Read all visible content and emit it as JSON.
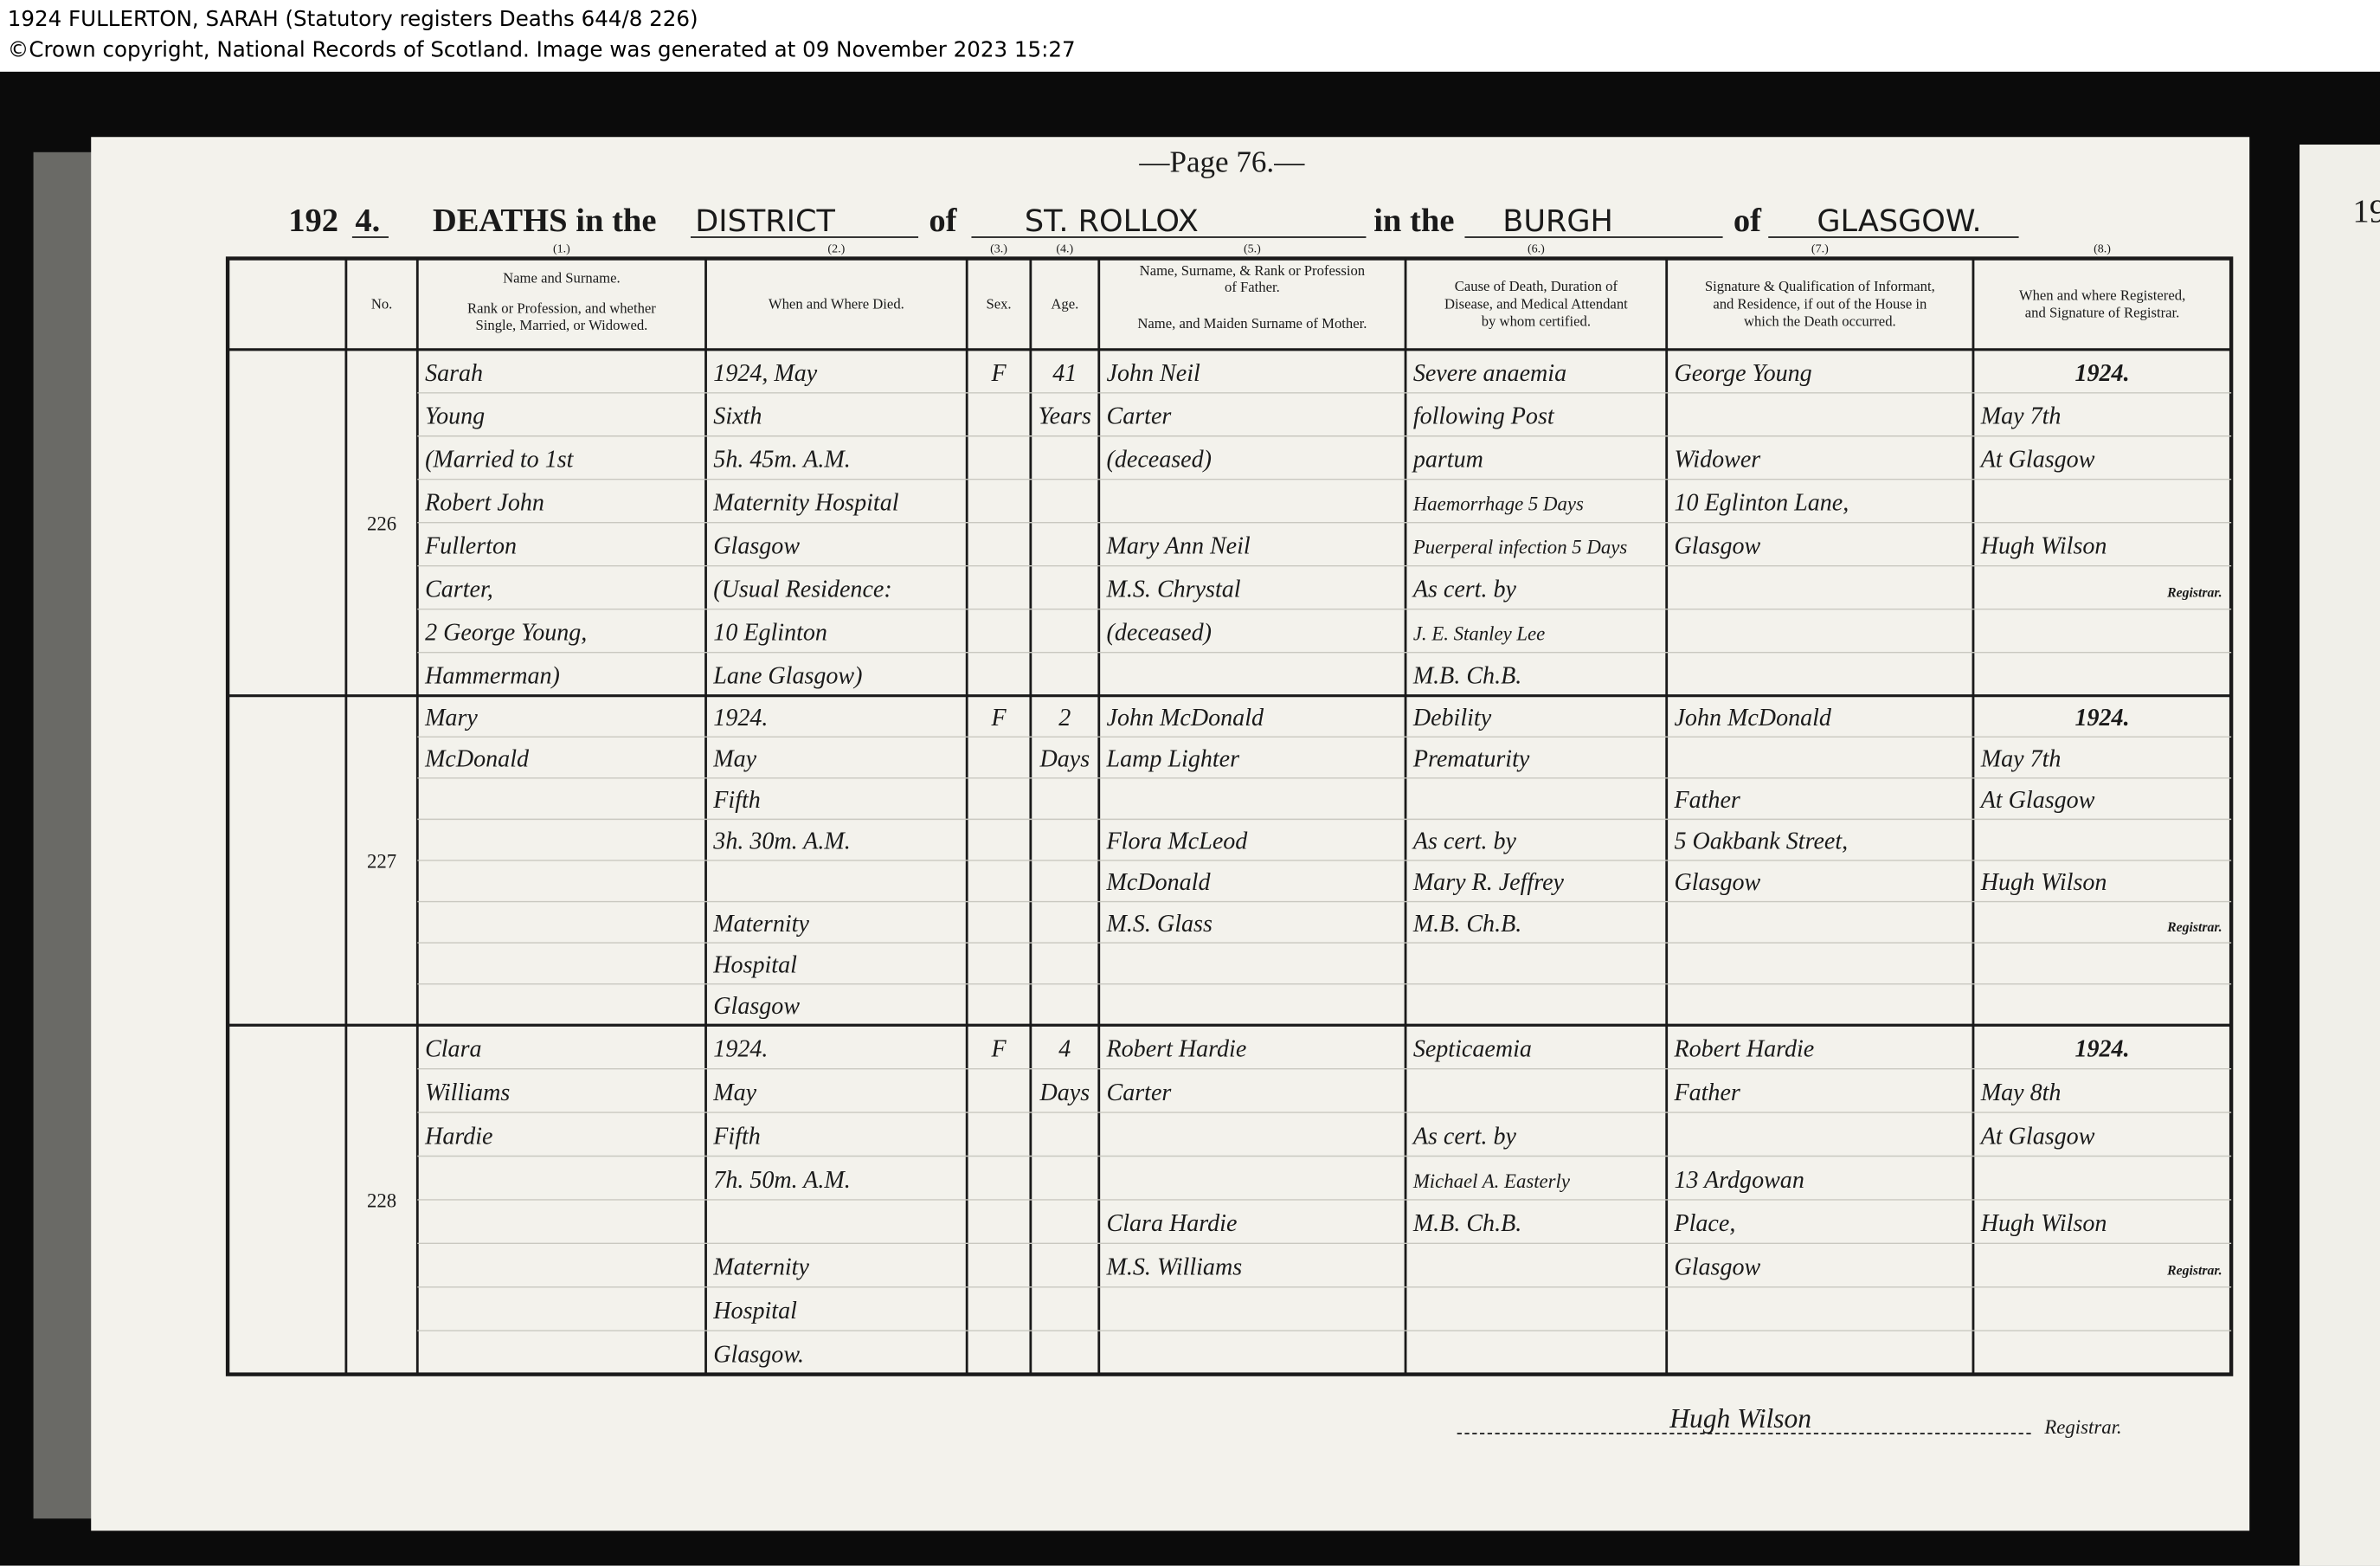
{
  "header": {
    "line1": "1924 FULLERTON, SARAH (Statutory registers Deaths 644/8 226)",
    "line2": "©Crown copyright, National Records of Scotland. Image was generated at 09 November 2023 15:27"
  },
  "page": {
    "page_number": "—Page 76.—",
    "next_page_year": "19",
    "heading": {
      "year": "192",
      "year_digit": "4.",
      "deaths": "DEATHS in the",
      "district_label": "DISTRICT",
      "of1": "of",
      "district": "ST. ROLLOX",
      "in_the": "in the",
      "burgh_label": "BURGH",
      "of2": "of",
      "burgh": "GLASGOW."
    }
  },
  "register": {
    "column_numbers": [
      "(1.)",
      "(2.)",
      "(3.)",
      "(4.)",
      "(5.)",
      "(6.)",
      "(7.)",
      "(8.)"
    ],
    "column_headers": {
      "no": [
        "No."
      ],
      "name": [
        "Name and Surname.",
        "Rank or Profession, and whether",
        "Single, Married, or Widowed."
      ],
      "when": [
        "When and Where Died."
      ],
      "sex": [
        "Sex."
      ],
      "age": [
        "Age."
      ],
      "father": [
        "Name, Surname, & Rank or Profession",
        "of Father.",
        "Name, and Maiden Surname of Mother."
      ],
      "cause": [
        "Cause of Death, Duration of",
        "Disease, and Medical Attendant",
        "by whom certified."
      ],
      "informant": [
        "Signature & Qualification of Informant,",
        "and Residence, if out of the House in",
        "which the Death occurred."
      ],
      "registered": [
        "When and where Registered,",
        "and Signature of Registrar."
      ]
    },
    "entries": [
      {
        "no": "226",
        "name": [
          "Sarah",
          "Young",
          "(Married to 1st",
          "Robert John",
          "Fullerton",
          "Carter,",
          "2 George Young,",
          "Hammerman)"
        ],
        "when": [
          "1924, May",
          "Sixth",
          "5h. 45m. A.M.",
          "Maternity Hospital",
          "Glasgow",
          "(Usual Residence:",
          "10 Eglinton",
          "Lane Glasgow)"
        ],
        "sex": [
          "F"
        ],
        "age": [
          "41",
          "Years"
        ],
        "father": [
          "John Neil",
          "Carter",
          "(deceased)",
          "Mary Ann Neil",
          "M.S. Chrystal",
          "(deceased)"
        ],
        "cause": [
          "Severe anaemia",
          "following Post",
          "partum",
          "Haemorrhage 5 Days",
          "Puerperal infection 5 Days",
          "As cert. by",
          "J. E. Stanley Lee",
          "M.B. Ch.B."
        ],
        "informant": [
          "George Young",
          "Widower",
          "10 Eglinton Lane,",
          "Glasgow"
        ],
        "registered": [
          "1924.",
          "May 7th",
          "At Glasgow",
          "Hugh Wilson",
          "Registrar."
        ]
      },
      {
        "no": "227",
        "name": [
          "Mary",
          "McDonald"
        ],
        "when": [
          "1924.",
          "May",
          "Fifth",
          "3h. 30m. A.M.",
          "Maternity",
          "Hospital",
          "Glasgow"
        ],
        "sex": [
          "F"
        ],
        "age": [
          "2",
          "Days"
        ],
        "father": [
          "John McDonald",
          "Lamp Lighter",
          "Flora McLeod",
          "McDonald",
          "M.S. Glass"
        ],
        "cause": [
          "Debility",
          "Prematurity",
          "As cert. by",
          "Mary R. Jeffrey",
          "M.B. Ch.B."
        ],
        "informant": [
          "John McDonald",
          "Father",
          "5 Oakbank Street,",
          "Glasgow"
        ],
        "registered": [
          "1924.",
          "May 7th",
          "At Glasgow",
          "Hugh Wilson",
          "Registrar."
        ]
      },
      {
        "no": "228",
        "name": [
          "Clara",
          "Williams",
          "Hardie"
        ],
        "when": [
          "1924.",
          "May",
          "Fifth",
          "7h. 50m. A.M.",
          "Maternity",
          "Hospital",
          "Glasgow."
        ],
        "sex": [
          "F"
        ],
        "age": [
          "4",
          "Days"
        ],
        "father": [
          "Robert Hardie",
          "Carter",
          "Clara Hardie",
          "M.S. Williams"
        ],
        "cause": [
          "Septicaemia",
          "As cert. by",
          "Michael A. Easterly",
          "M.B. Ch.B."
        ],
        "informant": [
          "Robert Hardie",
          "Father",
          "13 Ardgowan",
          "Place,",
          "Glasgow"
        ],
        "registered": [
          "1924.",
          "May 8th",
          "At Glasgow",
          "Hugh Wilson",
          "Registrar."
        ]
      }
    ]
  },
  "footer": {
    "signature": "Hugh Wilson",
    "registrar": "Registrar."
  }
}
